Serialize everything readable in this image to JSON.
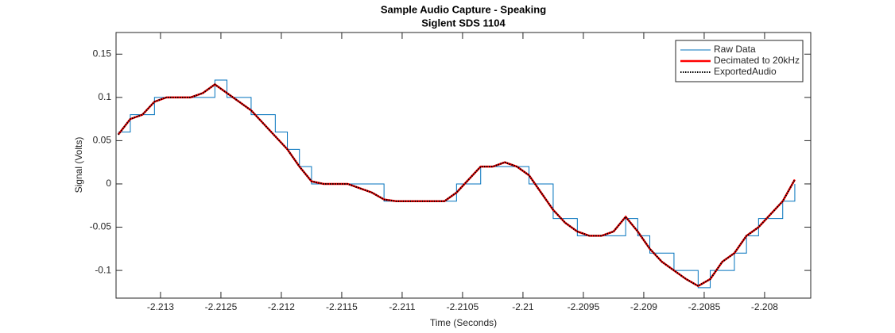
{
  "chart_data": {
    "type": "line",
    "title": "Sample Audio Capture - Speaking",
    "subtitle": "Siglent SDS 1104",
    "xlabel": "Time (Seconds)",
    "ylabel": "Signal (Volts)",
    "x": [
      -2.21335,
      -2.21325,
      -2.21315,
      -2.21305,
      -2.21295,
      -2.21285,
      -2.21275,
      -2.21265,
      -2.21255,
      -2.21245,
      -2.21235,
      -2.21225,
      -2.21215,
      -2.21205,
      -2.21195,
      -2.21185,
      -2.21175,
      -2.21165,
      -2.21155,
      -2.21145,
      -2.21135,
      -2.21125,
      -2.21115,
      -2.21105,
      -2.21095,
      -2.21085,
      -2.21075,
      -2.21065,
      -2.21055,
      -2.21045,
      -2.21035,
      -2.21025,
      -2.21015,
      -2.21005,
      -2.20995,
      -2.20985,
      -2.20975,
      -2.20965,
      -2.20955,
      -2.20945,
      -2.20935,
      -2.20925,
      -2.20915,
      -2.20905,
      -2.20895,
      -2.20885,
      -2.20875,
      -2.20865,
      -2.20855,
      -2.20845,
      -2.20835,
      -2.20825,
      -2.20815,
      -2.20805,
      -2.20795,
      -2.20785,
      -2.20775
    ],
    "series": [
      {
        "name": "Raw Data",
        "color": "#0072bd",
        "linestyle": "step",
        "width": 1,
        "values": [
          0.06,
          0.08,
          0.08,
          0.1,
          0.1,
          0.1,
          0.1,
          0.1,
          0.12,
          0.1,
          0.1,
          0.08,
          0.08,
          0.06,
          0.04,
          0.02,
          0,
          0,
          0,
          0,
          0,
          0,
          -0.02,
          -0.02,
          -0.02,
          -0.02,
          -0.02,
          -0.02,
          0,
          0,
          0.02,
          0.02,
          0.02,
          0.02,
          0,
          0,
          -0.04,
          -0.04,
          -0.06,
          -0.06,
          -0.06,
          -0.06,
          -0.04,
          -0.06,
          -0.08,
          -0.08,
          -0.1,
          -0.1,
          -0.12,
          -0.1,
          -0.1,
          -0.08,
          -0.06,
          -0.04,
          -0.04,
          -0.02,
          0
        ]
      },
      {
        "name": "Decimated to 20kHz",
        "color": "#ff0000",
        "linestyle": "solid",
        "width": 2.5,
        "values": [
          0.057,
          0.075,
          0.08,
          0.095,
          0.1,
          0.1,
          0.1,
          0.105,
          0.115,
          0.105,
          0.095,
          0.085,
          0.07,
          0.055,
          0.04,
          0.02,
          0.003,
          0,
          0,
          0,
          -0.005,
          -0.01,
          -0.018,
          -0.02,
          -0.02,
          -0.02,
          -0.02,
          -0.02,
          -0.01,
          0.005,
          0.02,
          0.02,
          0.025,
          0.02,
          0.01,
          -0.01,
          -0.03,
          -0.045,
          -0.055,
          -0.06,
          -0.06,
          -0.055,
          -0.038,
          -0.055,
          -0.075,
          -0.09,
          -0.1,
          -0.11,
          -0.118,
          -0.11,
          -0.09,
          -0.08,
          -0.06,
          -0.05,
          -0.035,
          -0.02,
          0.005
        ]
      },
      {
        "name": "ExportedAudio",
        "color": "#000000",
        "linestyle": "dotted",
        "width": 2,
        "values": [
          0.057,
          0.075,
          0.08,
          0.095,
          0.1,
          0.1,
          0.1,
          0.105,
          0.115,
          0.105,
          0.095,
          0.085,
          0.07,
          0.055,
          0.04,
          0.02,
          0.003,
          0,
          0,
          0,
          -0.005,
          -0.01,
          -0.018,
          -0.02,
          -0.02,
          -0.02,
          -0.02,
          -0.02,
          -0.01,
          0.005,
          0.02,
          0.02,
          0.025,
          0.02,
          0.01,
          -0.01,
          -0.03,
          -0.045,
          -0.055,
          -0.06,
          -0.06,
          -0.055,
          -0.038,
          -0.055,
          -0.075,
          -0.09,
          -0.1,
          -0.11,
          -0.118,
          -0.11,
          -0.09,
          -0.08,
          -0.06,
          -0.05,
          -0.035,
          -0.02,
          0.005
        ]
      }
    ],
    "xlim": [
      -2.213368,
      -2.207618
    ],
    "ylim": [
      -0.132,
      0.175
    ],
    "xticks": [
      -2.213,
      -2.2125,
      -2.212,
      -2.2115,
      -2.211,
      -2.2105,
      -2.21,
      -2.2095,
      -2.209,
      -2.2085,
      -2.208
    ],
    "yticks": [
      -0.1,
      -0.05,
      0,
      0.05,
      0.1,
      0.15
    ],
    "grid": false,
    "legend": "upper right"
  }
}
